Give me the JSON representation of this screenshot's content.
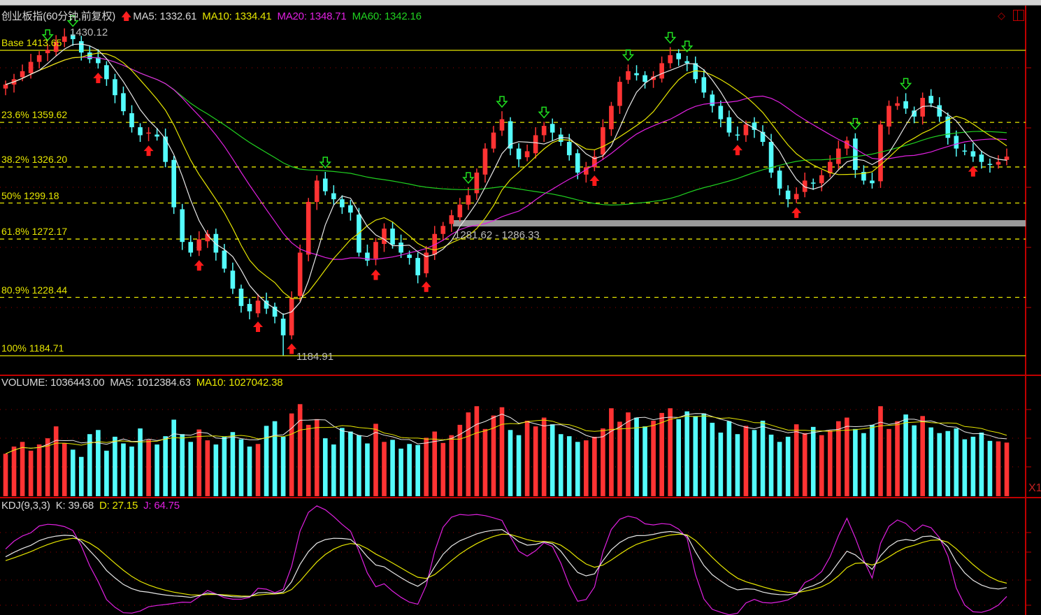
{
  "header": {
    "title": "创业板指(60分钟,前复权)",
    "ma5": "MA5: 1332.61",
    "ma10": "MA10: 1334.41",
    "ma20": "MA20: 1348.71",
    "ma60": "MA60: 1342.16"
  },
  "volume_header": {
    "volume": "VOLUME: 1036443.00",
    "ma5": "MA5: 1012384.63",
    "ma10": "MA10: 1027042.38"
  },
  "kdj_header": {
    "name": "KDJ(9,3,3)",
    "k": "K: 39.68",
    "d": "D: 27.15",
    "j": "J: 64.75"
  },
  "annotations": {
    "high_label": "1430.12",
    "low_label": "1184.91",
    "range_label": "1281.62 - 1286.33",
    "scale_label": "X1"
  },
  "colors": {
    "up": "#ff3333",
    "down": "#54fcfc",
    "ma5": "#e8e8e8",
    "ma10": "#e6e600",
    "ma20": "#e020e0",
    "ma60": "#20d020",
    "grid": "#a00000",
    "fib": "#e6e600"
  },
  "chart_data": {
    "type": "candlestick",
    "ylim": [
      1184.71,
      1413.65
    ],
    "fibonacci": [
      {
        "label": "Base 1413.65",
        "price": 1413.65,
        "style": "solid"
      },
      {
        "label": "23.6% 1359.62",
        "price": 1359.62,
        "style": "dashed"
      },
      {
        "label": "38.2% 1326.20",
        "price": 1326.2,
        "style": "dashed"
      },
      {
        "label": "50% 1299.18",
        "price": 1299.18,
        "style": "dashed"
      },
      {
        "label": "61.8% 1272.17",
        "price": 1272.17,
        "style": "dashed"
      },
      {
        "label": "80.9% 1228.44",
        "price": 1228.44,
        "style": "dashed"
      },
      {
        "label": "100% 1184.71",
        "price": 1184.71,
        "style": "solid"
      }
    ],
    "high": 1430.12,
    "low": 1184.91,
    "range_band": [
      1281.62,
      1286.33
    ],
    "close": [
      1388,
      1392,
      1398,
      1405,
      1410,
      1414,
      1420,
      1424,
      1422,
      1412,
      1407,
      1404,
      1392,
      1380,
      1368,
      1356,
      1350,
      1352,
      1349,
      1330,
      1296,
      1270,
      1262,
      1272,
      1276,
      1262,
      1250,
      1235,
      1222,
      1218,
      1226,
      1220,
      1214,
      1200,
      1228,
      1262,
      1300,
      1316,
      1308,
      1302,
      1296,
      1292,
      1262,
      1256,
      1270,
      1280,
      1268,
      1262,
      1258,
      1245,
      1262,
      1276,
      1282,
      1290,
      1298,
      1305,
      1322,
      1340,
      1352,
      1362,
      1340,
      1332,
      1338,
      1350,
      1357,
      1352,
      1345,
      1335,
      1322,
      1326,
      1334,
      1356,
      1372,
      1390,
      1398,
      1395,
      1390,
      1394,
      1404,
      1410,
      1407,
      1404,
      1392,
      1382,
      1372,
      1362,
      1352,
      1350,
      1358,
      1354,
      1345,
      1322,
      1310,
      1302,
      1306,
      1316,
      1314,
      1320,
      1330,
      1340,
      1346,
      1324,
      1316,
      1314,
      1358,
      1372,
      1374,
      1370,
      1364,
      1378,
      1374,
      1364,
      1348,
      1340,
      1338,
      1334,
      1330,
      1328,
      1330,
      1334
    ],
    "volume": [
      820000,
      960000,
      1050000,
      880000,
      1000000,
      1120000,
      1350000,
      1020000,
      900000,
      760000,
      1200000,
      1280000,
      880000,
      1150000,
      1020000,
      960000,
      1310000,
      1090000,
      1000000,
      1160000,
      1480000,
      1200000,
      1050000,
      1290000,
      1080000,
      1000000,
      1150000,
      1240000,
      1100000,
      960000,
      1010000,
      1360000,
      1450000,
      1150000,
      1600000,
      1780000,
      1380000,
      1490000,
      1120000,
      1000000,
      1320000,
      1250000,
      1180000,
      1020000,
      1400000,
      1050000,
      1090000,
      920000,
      1010000,
      990000,
      1130000,
      1250000,
      1030000,
      1180000,
      1380000,
      1620000,
      1740000,
      1300000,
      1560000,
      1720000,
      1280000,
      1180000,
      1460000,
      1350000,
      1520000,
      1390000,
      1200000,
      1160000,
      1050000,
      1080000,
      1150000,
      1310000,
      1700000,
      1440000,
      1620000,
      1520000,
      1350000,
      1460000,
      1610000,
      1700000,
      1490000,
      1640000,
      1550000,
      1600000,
      1420000,
      1230000,
      1450000,
      1200000,
      1360000,
      1280000,
      1460000,
      1190000,
      1050000,
      1150000,
      1390000,
      1220000,
      1340000,
      1180000,
      1270000,
      1450000,
      1520000,
      1300000,
      1220000,
      1380000,
      1740000,
      1300000,
      1450000,
      1580000,
      1370000,
      1550000,
      1330000,
      1220000,
      1260000,
      1310000,
      1100000,
      1150000,
      1230000,
      1070000,
      1060000,
      1036443
    ],
    "volume_ylim": [
      0,
      2000000
    ],
    "kdj_ylim": [
      0,
      100
    ],
    "buy_signals": [
      11,
      17,
      23,
      30,
      34,
      44,
      50,
      70,
      87,
      94,
      115
    ],
    "sell_signals": [
      5,
      8,
      38,
      55,
      59,
      64,
      74,
      79,
      81,
      101,
      107
    ]
  }
}
